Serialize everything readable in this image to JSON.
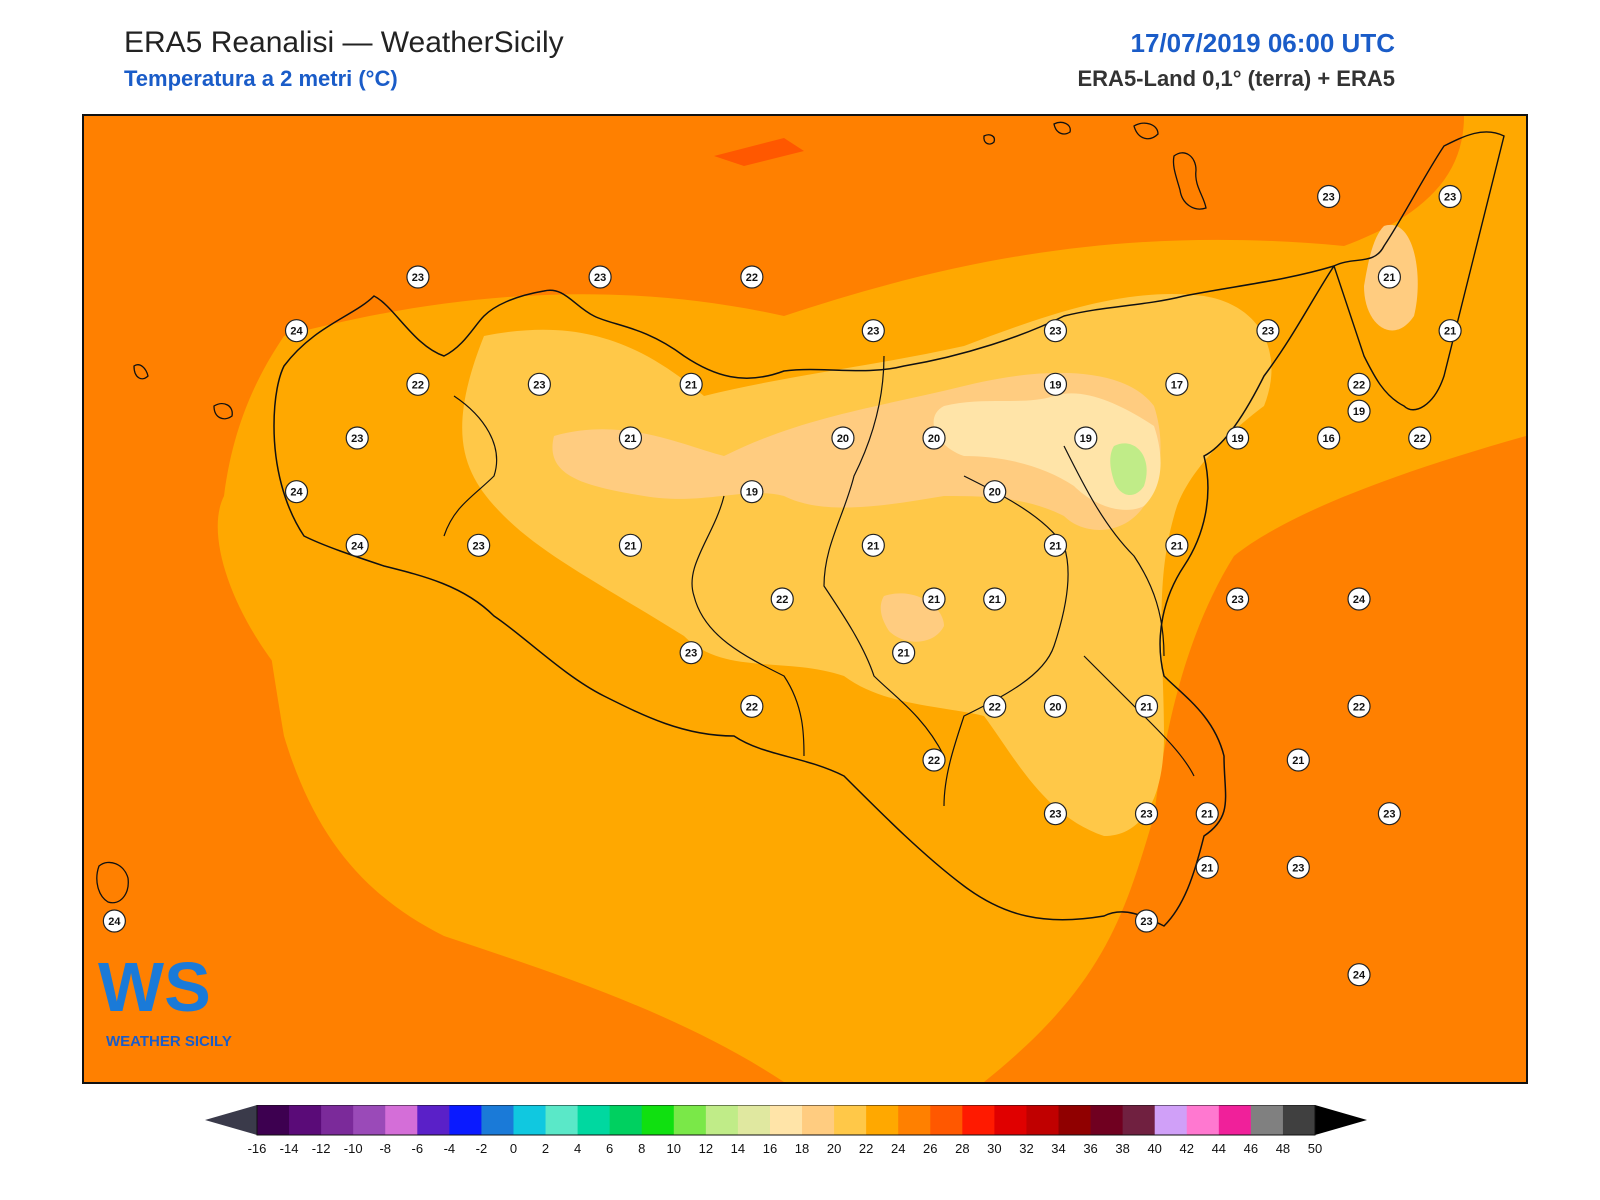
{
  "header": {
    "title": "ERA5 Reanalisi — WeatherSicily",
    "subtitle": "Temperatura a 2 metri (°C)",
    "datetime": "17/07/2019 06:00 UTC",
    "source": "ERA5-Land 0,1° (terra) + ERA5"
  },
  "logo": {
    "mark": "WS",
    "name": "WEATHER SICILY"
  },
  "map": {
    "region": "Sicily",
    "variable": "2m temperature",
    "station_values": [
      {
        "v": "23",
        "lon": 12.9,
        "lat": 38.05
      },
      {
        "v": "23",
        "lon": 13.5,
        "lat": 38.05
      },
      {
        "v": "22",
        "lon": 14.0,
        "lat": 38.05
      },
      {
        "v": "24",
        "lon": 12.5,
        "lat": 37.95
      },
      {
        "v": "23",
        "lon": 14.4,
        "lat": 37.95
      },
      {
        "v": "23",
        "lon": 15.0,
        "lat": 37.95
      },
      {
        "v": "23",
        "lon": 15.9,
        "lat": 38.2
      },
      {
        "v": "23",
        "lon": 16.3,
        "lat": 38.2
      },
      {
        "v": "21",
        "lon": 16.1,
        "lat": 38.05
      },
      {
        "v": "22",
        "lon": 16.0,
        "lat": 37.85
      },
      {
        "v": "19",
        "lon": 16.0,
        "lat": 37.8
      },
      {
        "v": "21",
        "lon": 16.3,
        "lat": 37.95
      },
      {
        "v": "23",
        "lon": 15.7,
        "lat": 37.95
      },
      {
        "v": "22",
        "lon": 12.9,
        "lat": 37.85
      },
      {
        "v": "23",
        "lon": 13.3,
        "lat": 37.85
      },
      {
        "v": "21",
        "lon": 13.8,
        "lat": 37.85
      },
      {
        "v": "19",
        "lon": 15.0,
        "lat": 37.85
      },
      {
        "v": "17",
        "lon": 15.4,
        "lat": 37.85
      },
      {
        "v": "23",
        "lon": 12.7,
        "lat": 37.75
      },
      {
        "v": "21",
        "lon": 13.6,
        "lat": 37.75
      },
      {
        "v": "20",
        "lon": 14.3,
        "lat": 37.75
      },
      {
        "v": "20",
        "lon": 14.6,
        "lat": 37.75
      },
      {
        "v": "19",
        "lon": 15.1,
        "lat": 37.75
      },
      {
        "v": "19",
        "lon": 15.6,
        "lat": 37.75
      },
      {
        "v": "16",
        "lon": 15.9,
        "lat": 37.75
      },
      {
        "v": "22",
        "lon": 16.2,
        "lat": 37.75
      },
      {
        "v": "24",
        "lon": 12.5,
        "lat": 37.65
      },
      {
        "v": "19",
        "lon": 14.0,
        "lat": 37.65
      },
      {
        "v": "20",
        "lon": 14.8,
        "lat": 37.65
      },
      {
        "v": "24",
        "lon": 12.7,
        "lat": 37.55
      },
      {
        "v": "23",
        "lon": 13.1,
        "lat": 37.55
      },
      {
        "v": "21",
        "lon": 13.6,
        "lat": 37.55
      },
      {
        "v": "21",
        "lon": 14.4,
        "lat": 37.55
      },
      {
        "v": "21",
        "lon": 15.0,
        "lat": 37.55
      },
      {
        "v": "21",
        "lon": 15.4,
        "lat": 37.55
      },
      {
        "v": "22",
        "lon": 14.1,
        "lat": 37.45
      },
      {
        "v": "21",
        "lon": 14.6,
        "lat": 37.45
      },
      {
        "v": "21",
        "lon": 14.8,
        "lat": 37.45
      },
      {
        "v": "23",
        "lon": 15.6,
        "lat": 37.45
      },
      {
        "v": "24",
        "lon": 16.0,
        "lat": 37.45
      },
      {
        "v": "23",
        "lon": 13.8,
        "lat": 37.35
      },
      {
        "v": "21",
        "lon": 14.5,
        "lat": 37.35
      },
      {
        "v": "22",
        "lon": 14.0,
        "lat": 37.25
      },
      {
        "v": "22",
        "lon": 14.8,
        "lat": 37.25
      },
      {
        "v": "20",
        "lon": 15.0,
        "lat": 37.25
      },
      {
        "v": "21",
        "lon": 15.3,
        "lat": 37.25
      },
      {
        "v": "22",
        "lon": 16.0,
        "lat": 37.25
      },
      {
        "v": "22",
        "lon": 14.6,
        "lat": 37.15
      },
      {
        "v": "21",
        "lon": 15.8,
        "lat": 37.15
      },
      {
        "v": "23",
        "lon": 15.0,
        "lat": 37.05
      },
      {
        "v": "23",
        "lon": 15.3,
        "lat": 37.05
      },
      {
        "v": "21",
        "lon": 15.5,
        "lat": 37.05
      },
      {
        "v": "23",
        "lon": 16.1,
        "lat": 37.05
      },
      {
        "v": "21",
        "lon": 15.5,
        "lat": 36.95
      },
      {
        "v": "23",
        "lon": 15.8,
        "lat": 36.95
      },
      {
        "v": "24",
        "lon": 11.9,
        "lat": 36.85
      },
      {
        "v": "23",
        "lon": 15.3,
        "lat": 36.85
      },
      {
        "v": "24",
        "lon": 16.0,
        "lat": 36.75
      }
    ]
  },
  "colorbar": {
    "ticks": [
      "-16",
      "-14",
      "-12",
      "-10",
      "-8",
      "-6",
      "-4",
      "-2",
      "0",
      "2",
      "4",
      "6",
      "8",
      "10",
      "12",
      "14",
      "16",
      "18",
      "20",
      "22",
      "24",
      "26",
      "28",
      "30",
      "32",
      "34",
      "36",
      "38",
      "40",
      "42",
      "44",
      "46",
      "48",
      "50"
    ],
    "colors": [
      "#3d0050",
      "#5a0b78",
      "#7b2a9a",
      "#9a4ab8",
      "#d46ed8",
      "#5a20c8",
      "#0a1aff",
      "#1a7ad8",
      "#10c8e0",
      "#5ae8c8",
      "#00d8a0",
      "#00d060",
      "#10e010",
      "#7ae848",
      "#c0ec88",
      "#e0e8a0",
      "#ffe4a8",
      "#ffcc80",
      "#ffc848",
      "#ffa800",
      "#ff8000",
      "#ff5800",
      "#ff1a00",
      "#e00000",
      "#c00000",
      "#900000",
      "#700020",
      "#702040",
      "#d0a0f8",
      "#ff78d0",
      "#f0209a",
      "#808080",
      "#404040"
    ]
  }
}
